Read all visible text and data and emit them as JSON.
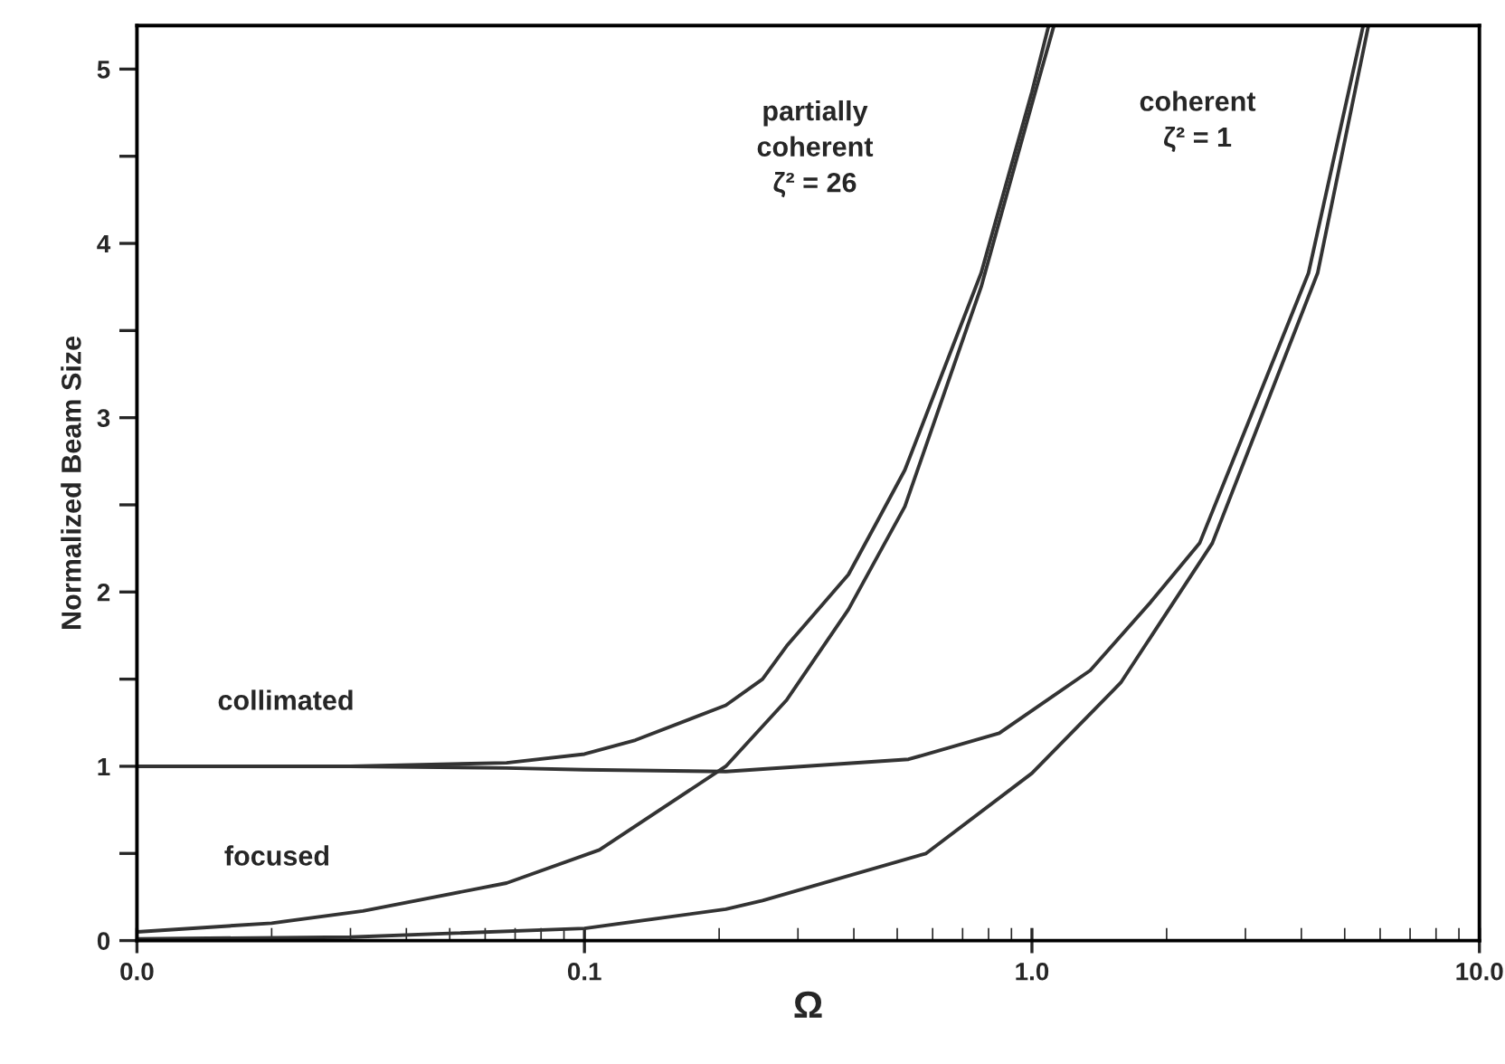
{
  "chart_data": {
    "type": "line",
    "xlabel": "Ω",
    "ylabel": "Normalized Beam Size",
    "log": "x",
    "xlim": [
      0.01,
      10
    ],
    "xticks": [
      {
        "value": 0.01,
        "label": "0.0"
      },
      {
        "value": 0.1,
        "label": "0.1"
      },
      {
        "value": 1,
        "label": "1.0"
      },
      {
        "value": 10,
        "label": "10.0"
      }
    ],
    "ylim": [
      0,
      5.25
    ],
    "yticks": [
      0,
      {
        "value": 0.5,
        "label": null
      },
      1,
      {
        "value": 1.5,
        "label": null
      },
      2,
      {
        "value": 2.5,
        "label": null
      },
      3,
      {
        "value": 3.5,
        "label": null
      },
      4,
      {
        "value": 4.5,
        "label": null
      },
      5
    ],
    "grid": false,
    "legend": false,
    "marker": "none",
    "line_style": "solid",
    "series": [
      {
        "color": "#333333",
        "x": [
          0.01,
          0.03,
          0.067,
          0.1,
          0.13,
          0.207,
          0.25,
          0.283,
          0.389,
          0.45,
          0.52,
          0.77,
          1.0,
          1.09
        ],
        "values": [
          1.0,
          1.0,
          1.02,
          1.07,
          1.15,
          1.35,
          1.5,
          1.69,
          2.1,
          2.4,
          2.7,
          3.83,
          4.87,
          5.25
        ]
      },
      {
        "color": "#333333",
        "x": [
          0.01,
          0.02,
          0.032,
          0.067,
          0.108,
          0.207,
          0.283,
          0.389,
          0.52,
          0.77,
          1.0,
          1.12
        ],
        "values": [
          0.05,
          0.1,
          0.17,
          0.33,
          0.52,
          1.0,
          1.38,
          1.9,
          2.49,
          3.75,
          4.8,
          5.25
        ]
      },
      {
        "color": "#333333",
        "x": [
          0.01,
          0.03,
          0.067,
          0.1,
          0.207,
          0.53,
          0.845,
          1.35,
          1.84,
          2.37,
          4.15,
          5.5
        ],
        "values": [
          1.0,
          1.0,
          0.99,
          0.98,
          0.97,
          1.04,
          1.19,
          1.55,
          1.94,
          2.28,
          3.83,
          5.25
        ]
      },
      {
        "color": "#333333",
        "x": [
          0.01,
          0.03,
          0.1,
          0.207,
          0.25,
          0.58,
          1.0,
          1.58,
          2.53,
          4.35,
          5.65
        ],
        "values": [
          0.01,
          0.02,
          0.07,
          0.18,
          0.23,
          0.5,
          0.96,
          1.48,
          2.28,
          3.83,
          5.25
        ]
      }
    ],
    "annotations": [
      "collimated",
      "focused",
      "partially\ncoherent\nζ² = 26",
      "coherent\nζ² = 1"
    ]
  }
}
